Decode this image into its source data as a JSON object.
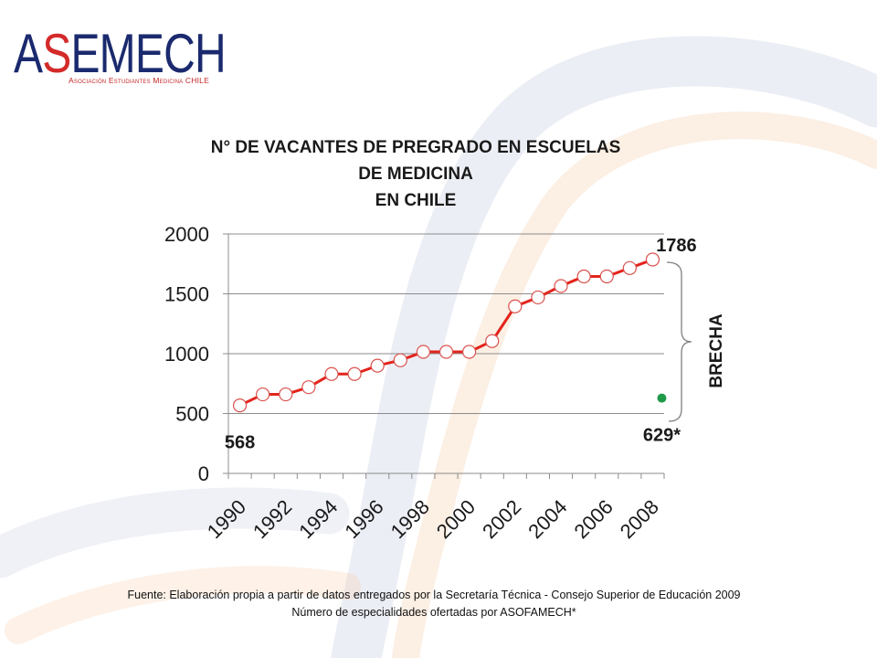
{
  "logo": {
    "wordmark": "ASEMECH",
    "tagline": "Asociación Estudiantes Medicina CHILE",
    "colors": {
      "primary": "#1b2a6e",
      "accent": "#d42a2a"
    }
  },
  "chart_data": {
    "type": "line",
    "title_lines": [
      "N° DE VACANTES DE PREGRADO EN ESCUELAS",
      "DE MEDICINA",
      "EN CHILE"
    ],
    "xlabel": "",
    "ylabel": "",
    "x": [
      1990,
      1991,
      1992,
      1993,
      1994,
      1995,
      1996,
      1997,
      1998,
      1999,
      2000,
      2001,
      2002,
      2003,
      2004,
      2005,
      2006,
      2007,
      2008
    ],
    "x_tick_labels": [
      "1990",
      "1992",
      "1994",
      "1996",
      "1998",
      "2000",
      "2002",
      "2004",
      "2006",
      "2008"
    ],
    "y_ticks": [
      0,
      500,
      1000,
      1500,
      2000
    ],
    "ylim": [
      0,
      2000
    ],
    "grid": true,
    "legend": "none",
    "series": [
      {
        "values": [
          568,
          660,
          660,
          720,
          830,
          830,
          900,
          945,
          1015,
          1015,
          1015,
          1105,
          1395,
          1470,
          1565,
          1645,
          1645,
          1715,
          1786
        ],
        "color": "#e3241c",
        "marker": "open-circle",
        "marker_edge": "#d9534f",
        "data_labels": [
          {
            "x": 1990,
            "text": "568",
            "placement": "below"
          },
          {
            "x": 2008,
            "text": "1786",
            "placement": "above-right"
          }
        ]
      },
      {
        "x": [
          2008
        ],
        "values": [
          629
        ],
        "color": "#1f9a48",
        "marker": "filled-circle",
        "data_labels": [
          {
            "x": 2008,
            "text": "629*",
            "placement": "below"
          }
        ]
      }
    ],
    "annotations": [
      {
        "text": "BRECHA",
        "between_values": [
          1786,
          629
        ]
      }
    ]
  },
  "footer": {
    "source": "Fuente: Elaboración propia a partir de datos entregados por la Secretaría Técnica - Consejo Superior de Educación 2009",
    "note": "Número de especialidades ofertadas por ASOFAMECH*"
  }
}
